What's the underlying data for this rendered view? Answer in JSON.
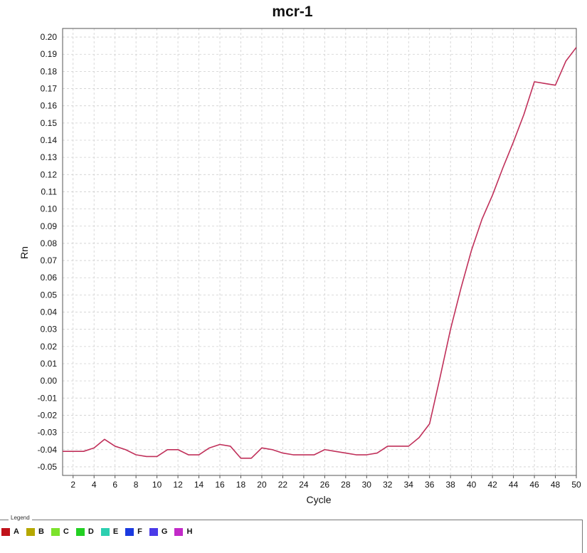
{
  "chart_data": {
    "type": "line",
    "title": "mcr-1",
    "xlabel": "Cycle",
    "ylabel": "Rn",
    "xlim": [
      1,
      50
    ],
    "ylim": [
      -0.055,
      0.205
    ],
    "x_ticks": [
      2,
      4,
      6,
      8,
      10,
      12,
      14,
      16,
      18,
      20,
      22,
      24,
      26,
      28,
      30,
      32,
      34,
      36,
      38,
      40,
      42,
      44,
      46,
      48,
      50
    ],
    "y_ticks": [
      -0.05,
      -0.04,
      -0.03,
      -0.02,
      -0.01,
      0.0,
      0.01,
      0.02,
      0.03,
      0.04,
      0.05,
      0.06,
      0.07,
      0.08,
      0.09,
      0.1,
      0.11,
      0.12,
      0.13,
      0.14,
      0.15,
      0.16,
      0.17,
      0.18,
      0.19,
      0.2
    ],
    "y_tick_labels": [
      "-0.05",
      "-0.04",
      "-0.03",
      "-0.02",
      "-0.01",
      "0.00",
      "0.01",
      "0.02",
      "0.03",
      "0.04",
      "0.05",
      "0.06",
      "0.07",
      "0.08",
      "0.09",
      "0.10",
      "0.11",
      "0.12",
      "0.13",
      "0.14",
      "0.15",
      "0.16",
      "0.17",
      "0.18",
      "0.19",
      "0.20"
    ],
    "grid": true,
    "series": [
      {
        "color": "#c0305a",
        "x": [
          1,
          2,
          3,
          4,
          5,
          6,
          7,
          8,
          9,
          10,
          11,
          12,
          13,
          14,
          15,
          16,
          17,
          18,
          19,
          20,
          21,
          22,
          23,
          24,
          25,
          26,
          27,
          28,
          29,
          30,
          31,
          32,
          33,
          34,
          35,
          36,
          37,
          38,
          39,
          40,
          41,
          42,
          43,
          44,
          45,
          46,
          47,
          48,
          49,
          50
        ],
        "y": [
          -0.041,
          -0.041,
          -0.041,
          -0.039,
          -0.034,
          -0.038,
          -0.04,
          -0.043,
          -0.044,
          -0.044,
          -0.04,
          -0.04,
          -0.043,
          -0.043,
          -0.039,
          -0.037,
          -0.038,
          -0.045,
          -0.045,
          -0.039,
          -0.04,
          -0.042,
          -0.043,
          -0.043,
          -0.043,
          -0.04,
          -0.041,
          -0.042,
          -0.043,
          -0.043,
          -0.042,
          -0.038,
          -0.038,
          -0.038,
          -0.033,
          -0.025,
          0.002,
          0.03,
          0.054,
          0.076,
          0.094,
          0.108,
          0.124,
          0.139,
          0.155,
          0.174,
          0.173,
          0.172,
          0.186,
          0.194
        ]
      }
    ],
    "legend": {
      "title": "Legend",
      "position": "bottom",
      "entries": [
        {
          "label": "A",
          "color": "#c0121a"
        },
        {
          "label": "B",
          "color": "#b5a800"
        },
        {
          "label": "C",
          "color": "#7ce22c"
        },
        {
          "label": "D",
          "color": "#22d022"
        },
        {
          "label": "E",
          "color": "#2ccfb0"
        },
        {
          "label": "F",
          "color": "#1a3ae0"
        },
        {
          "label": "G",
          "color": "#4a3ae8"
        },
        {
          "label": "H",
          "color": "#c22ac8"
        }
      ]
    }
  }
}
